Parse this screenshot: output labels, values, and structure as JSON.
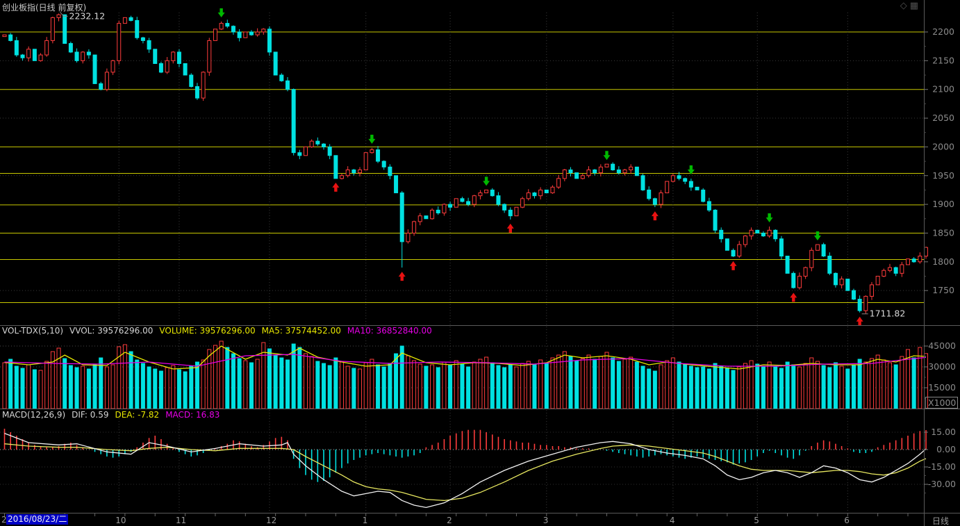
{
  "window": {
    "title": "创业板指(日线 前复权)",
    "period_label": "日线"
  },
  "corner_icons": {
    "diamond": "◇",
    "grid": "▦"
  },
  "vol_header": {
    "name": "VOL-TDX(5,10)",
    "vvol": "VVOL: 39576296.00",
    "volume": "VOLUME: 39576296.00",
    "ma5": "MA5: 37574452.00",
    "ma10": "MA10: 36852840.00"
  },
  "macd_header": {
    "name": "MACD(12,26,9)",
    "dif": "DIF: 0.59",
    "dea": "DEA: -7.82",
    "macd": "MACD: 16.83"
  },
  "date_axis": {
    "leading": "2",
    "selected_date": "2016/08/23/二",
    "months": [
      [
        "10",
        19
      ],
      [
        "11",
        29
      ],
      [
        "12",
        44
      ],
      [
        "1",
        60
      ],
      [
        "2",
        74
      ],
      [
        "3",
        90
      ],
      [
        "4",
        111
      ],
      [
        "5",
        125
      ],
      [
        "6",
        140
      ]
    ]
  },
  "price_axis_labels": [
    "2200",
    "2150",
    "2100",
    "2050",
    "2000",
    "1950",
    "1900",
    "1850",
    "1800",
    "1750"
  ],
  "volume_axis": {
    "labels": [
      "45000",
      "30000",
      "15000"
    ],
    "unit": "X1000"
  },
  "macd_axis_labels": [
    "15.00",
    "0.00",
    "-15.00",
    "-30.00"
  ],
  "colors": {
    "up": "#ff3c3c",
    "down": "#00e1e1",
    "level_line": "#c8c800",
    "grid_dotted": "#3a3a3a",
    "zero_dotted": "#b8b8b8",
    "axis_text": "#8c8c8c",
    "separator": "#5a5a5a",
    "ma5": "#e8e800",
    "ma10": "#e800e8",
    "dif": "#f2f2f2",
    "dea": "#e8e860",
    "buy_arrow": "#e81212",
    "sell_arrow": "#00b800",
    "annotation_text": "#d8d8d8",
    "date_box_bg": "#0000c6"
  },
  "chart_data": [
    {
      "type": "candlestick",
      "title": "创业板指(日线 前复权)",
      "first_open": 2192,
      "closes": [
        2195,
        2185,
        2160,
        2155,
        2170,
        2150,
        2160,
        2185,
        2225,
        2230,
        2180,
        2165,
        2150,
        2165,
        2160,
        2110,
        2100,
        2130,
        2150,
        2215,
        2225,
        2220,
        2190,
        2185,
        2170,
        2145,
        2130,
        2150,
        2165,
        2145,
        2125,
        2105,
        2085,
        2130,
        2185,
        2205,
        2215,
        2210,
        2200,
        2190,
        2200,
        2195,
        2200,
        2205,
        2165,
        2125,
        2115,
        2100,
        1990,
        1985,
        2000,
        2010,
        2005,
        2000,
        1985,
        1945,
        1950,
        1960,
        1955,
        1960,
        1990,
        1995,
        1975,
        1965,
        1950,
        1920,
        1835,
        1850,
        1870,
        1880,
        1875,
        1890,
        1885,
        1900,
        1895,
        1910,
        1905,
        1900,
        1915,
        1920,
        1925,
        1915,
        1900,
        1890,
        1880,
        1895,
        1910,
        1920,
        1915,
        1925,
        1920,
        1930,
        1945,
        1960,
        1955,
        1945,
        1950,
        1960,
        1955,
        1965,
        1970,
        1960,
        1955,
        1960,
        1965,
        1950,
        1925,
        1910,
        1900,
        1920,
        1940,
        1950,
        1945,
        1940,
        1930,
        1925,
        1905,
        1890,
        1855,
        1840,
        1820,
        1810,
        1830,
        1845,
        1855,
        1850,
        1845,
        1855,
        1840,
        1810,
        1780,
        1755,
        1775,
        1790,
        1820,
        1830,
        1810,
        1780,
        1760,
        1770,
        1750,
        1735,
        1715,
        1740,
        1760,
        1775,
        1785,
        1790,
        1780,
        1795,
        1805,
        1800,
        1810,
        1825
      ],
      "high_override": {
        "9": 2232.12
      },
      "low_override": {
        "66": 1790,
        "142": 1711.82
      },
      "annotations": [
        {
          "index": 9,
          "price": 2232.12,
          "text": "2232.12",
          "side": "high"
        },
        {
          "index": 142,
          "price": 1711.82,
          "text": "1711.82",
          "side": "low"
        }
      ],
      "sell_signal_indices": [
        36,
        61,
        80,
        100,
        114,
        127,
        135
      ],
      "buy_signal_indices": [
        55,
        66,
        84,
        108,
        121,
        131,
        142
      ],
      "level_lines": [
        2200,
        2100,
        2000,
        1954,
        1899,
        1850,
        1804,
        1729
      ],
      "dotted_lines": [
        2150,
        2050,
        1950,
        1850,
        1750
      ],
      "ylim": [
        1695,
        2255
      ]
    },
    {
      "type": "bar",
      "name": "VOL-TDX",
      "values": [
        33000,
        35500,
        30500,
        29000,
        31500,
        28000,
        27500,
        34000,
        41000,
        43500,
        36000,
        31000,
        29500,
        30500,
        28500,
        32000,
        36500,
        30000,
        31500,
        44500,
        46000,
        41000,
        35000,
        32500,
        30000,
        28500,
        27000,
        29500,
        31000,
        28000,
        26500,
        30500,
        33500,
        35000,
        42500,
        45500,
        48500,
        44000,
        39500,
        36000,
        34500,
        33000,
        35500,
        47500,
        43000,
        38500,
        36500,
        35000,
        46500,
        44000,
        39500,
        37500,
        34000,
        32500,
        31000,
        36500,
        33500,
        30500,
        29000,
        28500,
        33000,
        35500,
        31500,
        30000,
        32500,
        39500,
        45000,
        38000,
        34500,
        32000,
        30500,
        31500,
        29500,
        33500,
        31000,
        34500,
        32000,
        30000,
        33500,
        35500,
        37000,
        33000,
        31000,
        29500,
        31500,
        30000,
        32500,
        34000,
        31500,
        35000,
        32500,
        36500,
        38500,
        41000,
        37500,
        34500,
        36000,
        38500,
        35500,
        37500,
        40500,
        36500,
        34000,
        35500,
        37000,
        33500,
        30500,
        28500,
        27000,
        31500,
        34500,
        36500,
        33500,
        32000,
        30500,
        29500,
        30000,
        28500,
        32500,
        30500,
        29000,
        27500,
        30000,
        32500,
        34500,
        32000,
        30500,
        33500,
        30500,
        29000,
        33500,
        31500,
        30000,
        32500,
        36500,
        34000,
        31000,
        29500,
        33000,
        30500,
        28500,
        31000,
        35500,
        33500,
        36000,
        38500,
        35000,
        33000,
        31500,
        37500,
        42500,
        36500,
        44000,
        39576
      ],
      "ma5_waypoints": [
        [
          0,
          33200
        ],
        [
          4,
          31500
        ],
        [
          8,
          33500
        ],
        [
          10,
          38500
        ],
        [
          13,
          31500
        ],
        [
          17,
          31000
        ],
        [
          20,
          40500
        ],
        [
          24,
          33500
        ],
        [
          28,
          28500
        ],
        [
          32,
          29500
        ],
        [
          34,
          38000
        ],
        [
          36,
          45000
        ],
        [
          40,
          35500
        ],
        [
          43,
          40500
        ],
        [
          47,
          38500
        ],
        [
          49,
          43500
        ],
        [
          52,
          37000
        ],
        [
          56,
          33500
        ],
        [
          60,
          30500
        ],
        [
          64,
          31500
        ],
        [
          66,
          40000
        ],
        [
          70,
          33000
        ],
        [
          74,
          31500
        ],
        [
          78,
          33000
        ],
        [
          82,
          32500
        ],
        [
          86,
          31000
        ],
        [
          90,
          33000
        ],
        [
          93,
          38500
        ],
        [
          96,
          36500
        ],
        [
          100,
          38000
        ],
        [
          104,
          35500
        ],
        [
          107,
          31500
        ],
        [
          110,
          33500
        ],
        [
          114,
          31500
        ],
        [
          118,
          30000
        ],
        [
          122,
          28500
        ],
        [
          126,
          31500
        ],
        [
          130,
          31000
        ],
        [
          134,
          32500
        ],
        [
          138,
          31500
        ],
        [
          142,
          31500
        ],
        [
          145,
          35500
        ],
        [
          148,
          33500
        ],
        [
          151,
          38000
        ],
        [
          153,
          37574
        ]
      ],
      "ma10_waypoints": [
        [
          0,
          33500
        ],
        [
          8,
          32500
        ],
        [
          16,
          32000
        ],
        [
          24,
          33500
        ],
        [
          32,
          30500
        ],
        [
          40,
          38000
        ],
        [
          48,
          39000
        ],
        [
          56,
          34000
        ],
        [
          64,
          32500
        ],
        [
          72,
          33500
        ],
        [
          80,
          33000
        ],
        [
          88,
          32000
        ],
        [
          96,
          35000
        ],
        [
          104,
          36000
        ],
        [
          112,
          32500
        ],
        [
          120,
          30500
        ],
        [
          128,
          30500
        ],
        [
          136,
          32000
        ],
        [
          144,
          32500
        ],
        [
          150,
          35500
        ],
        [
          153,
          36853
        ]
      ],
      "gridlines": [
        45000,
        30000,
        15000
      ],
      "ylim": [
        0,
        48500
      ]
    },
    {
      "type": "macd",
      "hist": [
        18,
        15,
        12,
        9,
        6,
        4,
        3,
        2,
        2,
        3,
        5,
        6,
        4,
        2,
        0,
        -2,
        -4,
        -6,
        -7,
        -6,
        -4,
        -2,
        2,
        6,
        10,
        12,
        9,
        5,
        1,
        -2,
        -4,
        -6,
        -5,
        -3,
        -1,
        1,
        3,
        5,
        8,
        7,
        5,
        3,
        2,
        4,
        7,
        10,
        11,
        8,
        -8,
        -16,
        -22,
        -26,
        -28,
        -27,
        -24,
        -20,
        -16,
        -12,
        -9,
        -7,
        -5,
        -4,
        -3,
        -4,
        -5,
        -6,
        -7,
        -6,
        -5,
        -3,
        2,
        4,
        6,
        9,
        12,
        14,
        16,
        17,
        17,
        17,
        15,
        13,
        11,
        9,
        8,
        7,
        6,
        6,
        5,
        4,
        4,
        3,
        3,
        2,
        2,
        1,
        1,
        1,
        0,
        0,
        -1,
        -2,
        -3,
        -4,
        -5,
        -6,
        -7,
        -6,
        -5,
        -4,
        -5,
        -6,
        -7,
        -8,
        -7,
        -6,
        -7,
        -8,
        -9,
        -10,
        -11,
        -13,
        -12,
        -11,
        -9,
        -6,
        -3,
        -1,
        -3,
        -5,
        -7,
        -8,
        -5,
        -1,
        3,
        6,
        8,
        7,
        5,
        3,
        1,
        -2,
        -3,
        -3,
        -2,
        2,
        4,
        6,
        8,
        10,
        12,
        14,
        16,
        16.83
      ],
      "dif_waypoints": [
        [
          0,
          14
        ],
        [
          4,
          6
        ],
        [
          9,
          4
        ],
        [
          12,
          5
        ],
        [
          17,
          -2
        ],
        [
          21,
          -4
        ],
        [
          24,
          6
        ],
        [
          27,
          3
        ],
        [
          31,
          -2
        ],
        [
          35,
          1
        ],
        [
          39,
          5
        ],
        [
          43,
          3
        ],
        [
          46,
          4
        ],
        [
          47,
          6
        ],
        [
          48,
          -4
        ],
        [
          50,
          -14
        ],
        [
          53,
          -26
        ],
        [
          56,
          -36
        ],
        [
          58,
          -40
        ],
        [
          60,
          -38
        ],
        [
          62,
          -36
        ],
        [
          64,
          -37
        ],
        [
          66,
          -44
        ],
        [
          68,
          -48
        ],
        [
          70,
          -50
        ],
        [
          73,
          -46
        ],
        [
          76,
          -38
        ],
        [
          79,
          -28
        ],
        [
          83,
          -18
        ],
        [
          87,
          -10
        ],
        [
          91,
          -4
        ],
        [
          95,
          2
        ],
        [
          99,
          6
        ],
        [
          101,
          7
        ],
        [
          104,
          5
        ],
        [
          107,
          0
        ],
        [
          110,
          -3
        ],
        [
          113,
          -5
        ],
        [
          116,
          -8
        ],
        [
          118,
          -14
        ],
        [
          120,
          -22
        ],
        [
          122,
          -26
        ],
        [
          124,
          -24
        ],
        [
          126,
          -20
        ],
        [
          128,
          -18
        ],
        [
          130,
          -20
        ],
        [
          132,
          -24
        ],
        [
          134,
          -20
        ],
        [
          136,
          -14
        ],
        [
          138,
          -16
        ],
        [
          140,
          -20
        ],
        [
          142,
          -26
        ],
        [
          144,
          -28
        ],
        [
          146,
          -24
        ],
        [
          148,
          -18
        ],
        [
          150,
          -12
        ],
        [
          151,
          -8
        ],
        [
          152,
          -4
        ],
        [
          153,
          0.59
        ]
      ],
      "dea_waypoints": [
        [
          0,
          5
        ],
        [
          4,
          3
        ],
        [
          9,
          2
        ],
        [
          12,
          2
        ],
        [
          17,
          0
        ],
        [
          21,
          -1
        ],
        [
          24,
          1
        ],
        [
          27,
          2
        ],
        [
          31,
          0
        ],
        [
          35,
          -1
        ],
        [
          39,
          1
        ],
        [
          43,
          1
        ],
        [
          46,
          1
        ],
        [
          48,
          0
        ],
        [
          50,
          -6
        ],
        [
          53,
          -14
        ],
        [
          56,
          -22
        ],
        [
          58,
          -28
        ],
        [
          60,
          -32
        ],
        [
          62,
          -34
        ],
        [
          64,
          -35
        ],
        [
          66,
          -37
        ],
        [
          68,
          -40
        ],
        [
          70,
          -43
        ],
        [
          73,
          -44
        ],
        [
          76,
          -42
        ],
        [
          79,
          -37
        ],
        [
          83,
          -28
        ],
        [
          87,
          -18
        ],
        [
          91,
          -10
        ],
        [
          95,
          -4
        ],
        [
          99,
          1
        ],
        [
          101,
          3
        ],
        [
          104,
          4
        ],
        [
          107,
          3
        ],
        [
          110,
          1
        ],
        [
          113,
          -1
        ],
        [
          116,
          -3
        ],
        [
          118,
          -6
        ],
        [
          120,
          -10
        ],
        [
          122,
          -14
        ],
        [
          124,
          -17
        ],
        [
          126,
          -18
        ],
        [
          128,
          -18
        ],
        [
          130,
          -18
        ],
        [
          132,
          -19
        ],
        [
          134,
          -20
        ],
        [
          136,
          -19
        ],
        [
          138,
          -18
        ],
        [
          140,
          -18
        ],
        [
          142,
          -19
        ],
        [
          144,
          -21
        ],
        [
          146,
          -22
        ],
        [
          148,
          -20
        ],
        [
          150,
          -16
        ],
        [
          151,
          -13
        ],
        [
          152,
          -10
        ],
        [
          153,
          -7.82
        ]
      ],
      "gridlines": [
        15,
        0,
        -15,
        -30
      ],
      "ylim": [
        -55,
        25
      ]
    }
  ]
}
